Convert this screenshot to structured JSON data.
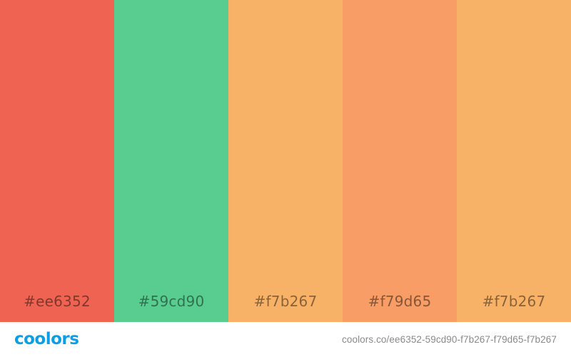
{
  "palette": {
    "swatches": [
      {
        "label": "#ee6352",
        "color": "#ee6352"
      },
      {
        "label": "#59cd90",
        "color": "#59cd90"
      },
      {
        "label": "#f7b267",
        "color": "#f7b267"
      },
      {
        "label": "#f79d65",
        "color": "#f79d65"
      },
      {
        "label": "#f7b267",
        "color": "#f7b267"
      }
    ]
  },
  "footer": {
    "logo": "coolors",
    "logo_color": "#0b9ee3",
    "url": "coolors.co/ee6352-59cd90-f7b267-f79d65-f7b267"
  }
}
